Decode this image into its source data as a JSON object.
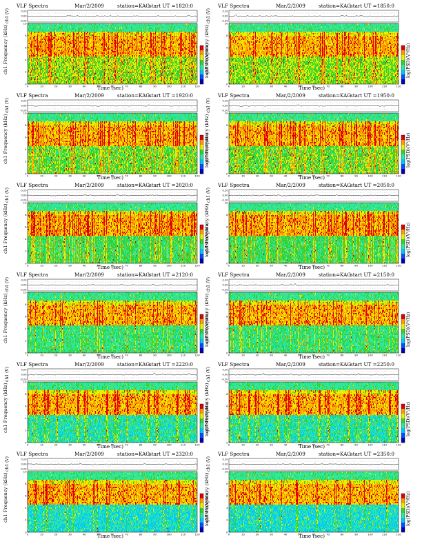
{
  "common": {
    "title": "VLF Spectra",
    "date": "Mar/2/2009",
    "station": "station=KAG",
    "start_prefix": "start  UT  =",
    "ch_label": "ch1 (V)",
    "freq_label": "Frequency  (kHz)",
    "ch_overlay": "ch1",
    "colorbar_label": "log(PSD)(V²/Hz)",
    "xlabel": "Time  (sec)"
  },
  "panels": [
    {
      "ut": "1820:0"
    },
    {
      "ut": "1850:0"
    },
    {
      "ut": "1920:0"
    },
    {
      "ut": "1950:0"
    },
    {
      "ut": "2020:0"
    },
    {
      "ut": "2050:0"
    },
    {
      "ut": "2120:0"
    },
    {
      "ut": "2150:0"
    },
    {
      "ut": "2220:0"
    },
    {
      "ut": "2250:0"
    },
    {
      "ut": "2320:0"
    },
    {
      "ut": "2350:0"
    }
  ],
  "chart_data": {
    "type": "heatmap",
    "x": {
      "label": "Time  (sec)",
      "range": [
        0,
        120
      ],
      "ticks": [
        0,
        10,
        20,
        30,
        40,
        50,
        60,
        70,
        80,
        90,
        100,
        110,
        120
      ]
    },
    "y": {
      "label": "Frequency  (kHz)",
      "range": [
        0,
        10
      ],
      "ticks": [
        0,
        2,
        4,
        6,
        8,
        10
      ]
    },
    "waveform_axis": {
      "label": "ch1 (V)",
      "ticks": [
        "0.20",
        "0.00",
        "-0.20"
      ]
    },
    "colorbar": {
      "label": "log(PSD)(V²/Hz)",
      "colors": [
        "#0000b4",
        "#0050ff",
        "#00c8ff",
        "#2ee8a0",
        "#32d232",
        "#e8f000",
        "#ff9c00",
        "#e00000"
      ]
    }
  },
  "colors": {
    "deep_blue": "#0000b4",
    "blue": "#0050ff",
    "cyan": "#00c8ff",
    "green": "#32d232",
    "yellow": "#e8f000",
    "orange": "#ff9c00",
    "red": "#e00000"
  }
}
